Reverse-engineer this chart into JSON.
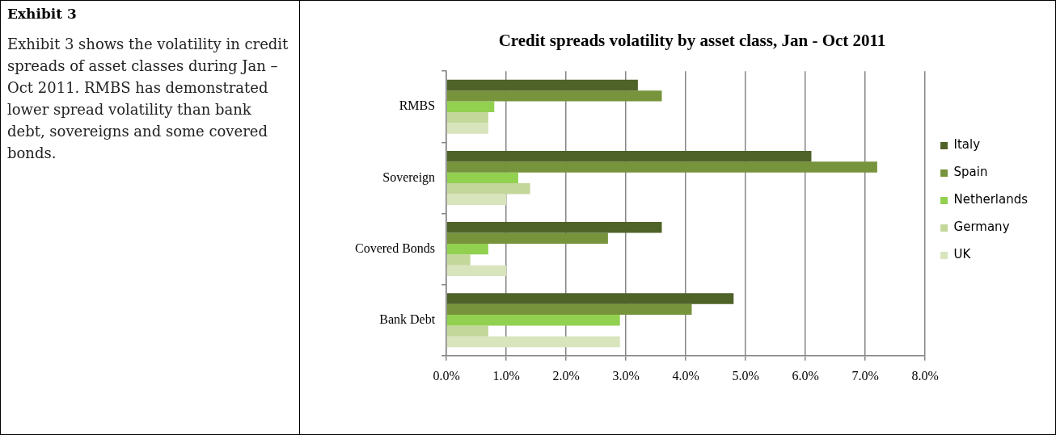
{
  "chart_data": {
    "type": "bar",
    "orientation": "horizontal",
    "title": "Credit spreads volatility by asset class, Jan - Oct 2011",
    "annotations": [
      "Exhibit 3",
      "Exhibit 3 shows the volatility in credit spreads of asset classes during Jan – Oct 2011. RMBS has demonstrated lower spread volatility than bank debt, sovereigns and some covered bonds."
    ],
    "categories": [
      "RMBS",
      "Sovereign",
      "Covered Bonds",
      "Bank Debt"
    ],
    "series": [
      {
        "name": "Italy",
        "color": "#4f6228",
        "values": [
          3.2,
          6.1,
          3.6,
          4.8
        ]
      },
      {
        "name": "Spain",
        "color": "#77933c",
        "values": [
          3.6,
          7.2,
          2.7,
          4.1
        ]
      },
      {
        "name": "Netherlands",
        "color": "#92d050",
        "values": [
          0.8,
          1.2,
          0.7,
          2.9
        ]
      },
      {
        "name": "Germany",
        "color": "#c4d79b",
        "values": [
          0.7,
          1.4,
          0.4,
          0.7
        ]
      },
      {
        "name": "UK",
        "color": "#d8e4bc",
        "values": [
          0.7,
          1.0,
          1.0,
          2.9
        ]
      }
    ],
    "xlim": [
      0,
      8
    ],
    "xticks": [
      {
        "value": 0,
        "label": "0.0%"
      },
      {
        "value": 1,
        "label": "1.0%"
      },
      {
        "value": 2,
        "label": "2.0%"
      },
      {
        "value": 3,
        "label": "3.0%"
      },
      {
        "value": 4,
        "label": "4.0%"
      },
      {
        "value": 5,
        "label": "5.0%"
      },
      {
        "value": 6,
        "label": "6.0%"
      },
      {
        "value": 7,
        "label": "7.0%"
      },
      {
        "value": 8,
        "label": "8.0%"
      }
    ],
    "grid": "x",
    "legend": "right"
  }
}
